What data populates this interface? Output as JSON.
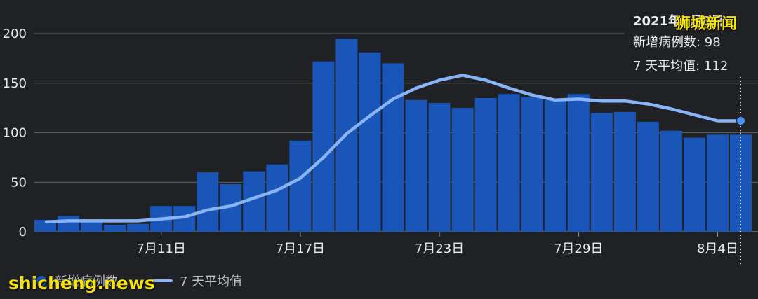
{
  "chart_data": {
    "type": "bar",
    "x": [
      "7月6日",
      "7月7日",
      "7月8日",
      "7月9日",
      "7月10日",
      "7月11日",
      "7月12日",
      "7月13日",
      "7月14日",
      "7月15日",
      "7月16日",
      "7月17日",
      "7月18日",
      "7月19日",
      "7月20日",
      "7月21日",
      "7月22日",
      "7月23日",
      "7月24日",
      "7月25日",
      "7月26日",
      "7月27日",
      "7月28日",
      "7月29日",
      "7月30日",
      "7月31日",
      "8月1日",
      "8月2日",
      "8月3日",
      "8月4日",
      "8月5日"
    ],
    "xticks": [
      "7月11日",
      "7月17日",
      "7月23日",
      "7月29日",
      "8月4日"
    ],
    "ylim": [
      0,
      200
    ],
    "yticks": [
      0,
      50,
      100,
      150,
      200
    ],
    "grid": true,
    "series": [
      {
        "name": "新增病例数",
        "type": "bar",
        "color": "#1a56b8",
        "values": [
          12,
          16,
          11,
          7,
          8,
          26,
          26,
          60,
          48,
          61,
          68,
          92,
          172,
          195,
          181,
          170,
          133,
          130,
          125,
          135,
          139,
          136,
          133,
          139,
          120,
          121,
          111,
          102,
          95,
          98,
          98
        ]
      },
      {
        "name": "7 天平均值",
        "type": "line",
        "color": "#8ab4f8",
        "values": [
          10,
          11,
          11,
          11,
          11,
          13,
          15,
          22,
          26,
          34,
          42,
          54,
          75,
          99,
          117,
          134,
          145,
          153,
          158,
          153,
          145,
          138,
          133,
          134,
          132,
          132,
          129,
          124,
          118,
          112,
          112
        ]
      }
    ],
    "xlabel": "",
    "ylabel": "",
    "legend_position": "bottom-left"
  },
  "tooltip": {
    "date": "2021年8月5日",
    "new_cases": "新增病例数: 98",
    "avg": "7 天平均值: 112"
  },
  "legend": {
    "bar_label": "新增病例数",
    "line_label": "7 天平均值"
  },
  "watermark": {
    "top": "狮城新闻",
    "bottom": "shicheng.news"
  },
  "colors": {
    "background": "#202124",
    "bar": "#1a56b8",
    "line": "#8ab4f8",
    "grid": "#5f6368",
    "axis_text": "#e8eaed",
    "watermark": "#f4e40b"
  }
}
